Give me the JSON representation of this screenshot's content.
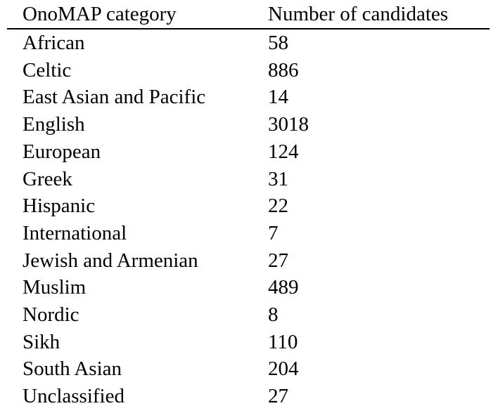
{
  "table": {
    "headers": [
      "OnoMAP category",
      "Number of candidates"
    ],
    "rows": [
      [
        "African",
        "58"
      ],
      [
        "Celtic",
        "886"
      ],
      [
        "East Asian and Pacific",
        "14"
      ],
      [
        "English",
        "3018"
      ],
      [
        "European",
        "124"
      ],
      [
        "Greek",
        "31"
      ],
      [
        "Hispanic",
        "22"
      ],
      [
        "International",
        "7"
      ],
      [
        "Jewish and Armenian",
        "27"
      ],
      [
        "Muslim",
        "489"
      ],
      [
        "Nordic",
        "8"
      ],
      [
        "Sikh",
        "110"
      ],
      [
        "South Asian",
        "204"
      ],
      [
        "Unclassified",
        "27"
      ]
    ]
  }
}
